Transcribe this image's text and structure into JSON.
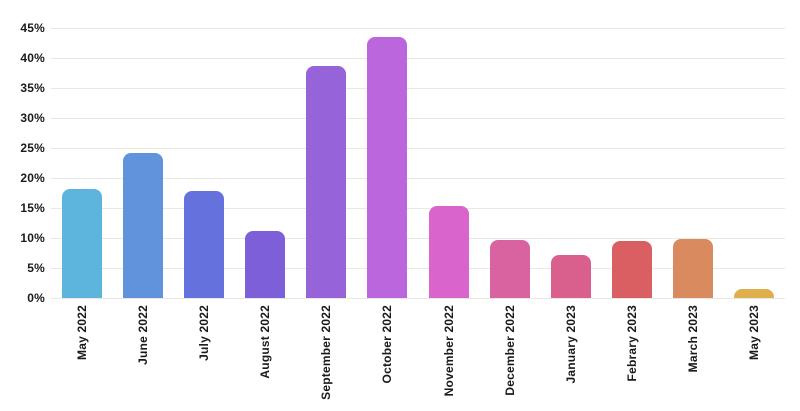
{
  "chart_data": {
    "type": "bar",
    "title": "",
    "xlabel": "",
    "ylabel": "",
    "categories": [
      "May 2022",
      "June 2022",
      "July 2022",
      "August 2022",
      "September 2022",
      "October 2022",
      "November 2022",
      "December 2022",
      "January 2023",
      "Febrary 2023",
      "March 2023",
      "May 2023"
    ],
    "values": [
      18.2,
      24.2,
      17.8,
      11.2,
      38.7,
      43.5,
      15.3,
      9.6,
      7.1,
      9.5,
      9.8,
      1.5
    ],
    "bar_colors": [
      "#5db4dc",
      "#6093db",
      "#6571dc",
      "#7d60d9",
      "#9763d9",
      "#bb66dc",
      "#d964cb",
      "#d963a0",
      "#d9608c",
      "#d95f63",
      "#d98a5f",
      "#dfae4d"
    ],
    "ylim": [
      0,
      45
    ],
    "yticks": [
      0,
      5,
      10,
      15,
      20,
      25,
      30,
      35,
      40,
      45
    ],
    "ytick_suffix": "%",
    "grid": true,
    "legend": "none"
  },
  "colors": {
    "background": "#ffffff",
    "gridline": "#e9e8e5",
    "tick_text": "#1a1a1a"
  }
}
